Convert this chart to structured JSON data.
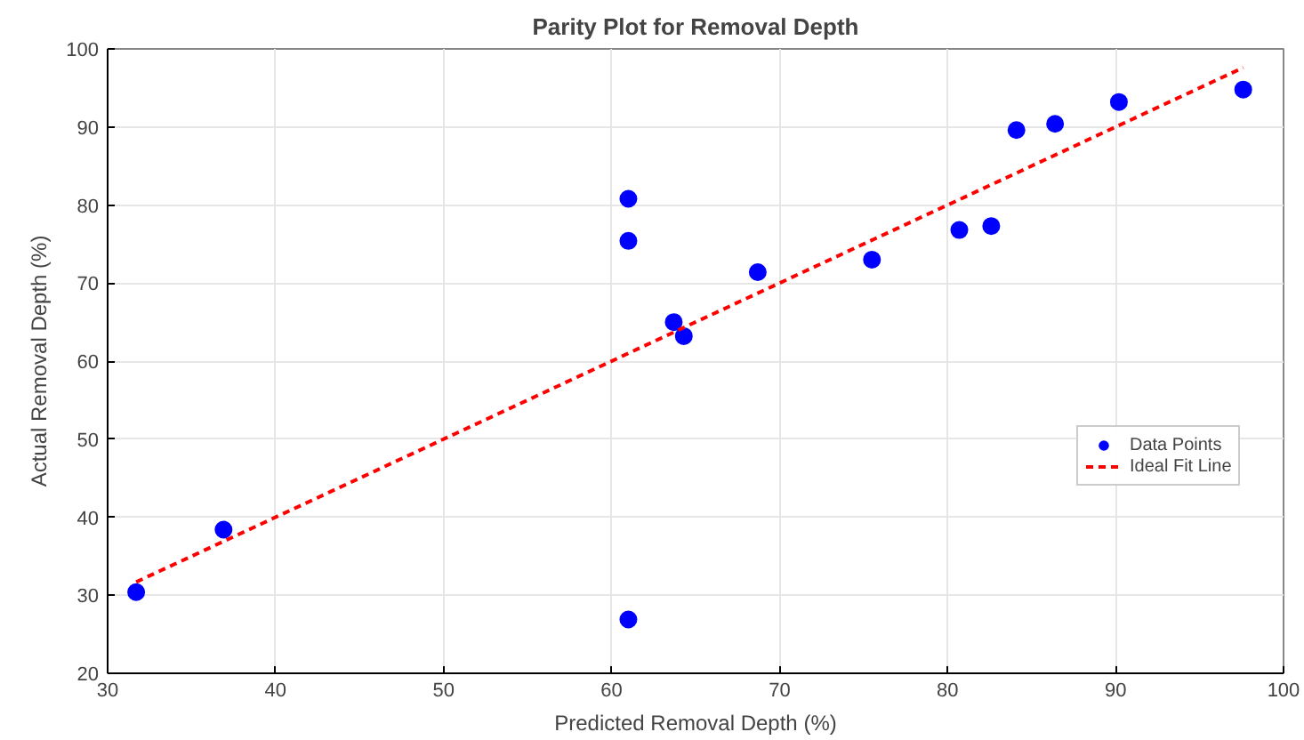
{
  "chart_data": {
    "type": "scatter",
    "title": "Parity Plot for Removal Depth",
    "xlabel": "Predicted Removal Depth (%)",
    "ylabel": "Actual Removal Depth (%)",
    "xlim": [
      30,
      100
    ],
    "ylim": [
      20,
      100
    ],
    "xticks": [
      30,
      40,
      50,
      60,
      70,
      80,
      90,
      100
    ],
    "yticks": [
      20,
      30,
      40,
      50,
      60,
      70,
      80,
      90,
      100
    ],
    "grid": true,
    "legend": "right",
    "marker": "circle",
    "series": [
      {
        "name": "Data Points",
        "color": "#0000ff",
        "x": [
          31.7,
          36.9,
          61.0,
          61.0,
          61.0,
          63.7,
          64.3,
          68.7,
          75.5,
          80.7,
          82.6,
          84.1,
          86.4,
          90.2,
          97.6
        ],
        "values": [
          30.4,
          38.4,
          80.8,
          75.4,
          26.9,
          65.0,
          63.2,
          71.4,
          73.0,
          76.8,
          77.3,
          89.6,
          90.4,
          93.2,
          94.8
        ]
      },
      {
        "name": "Ideal Fit Line",
        "type": "line",
        "color": "#ff0000",
        "line_style": "dashed",
        "marker": "none",
        "x": [
          31.7,
          97.6
        ],
        "values": [
          31.7,
          97.6
        ]
      }
    ]
  }
}
